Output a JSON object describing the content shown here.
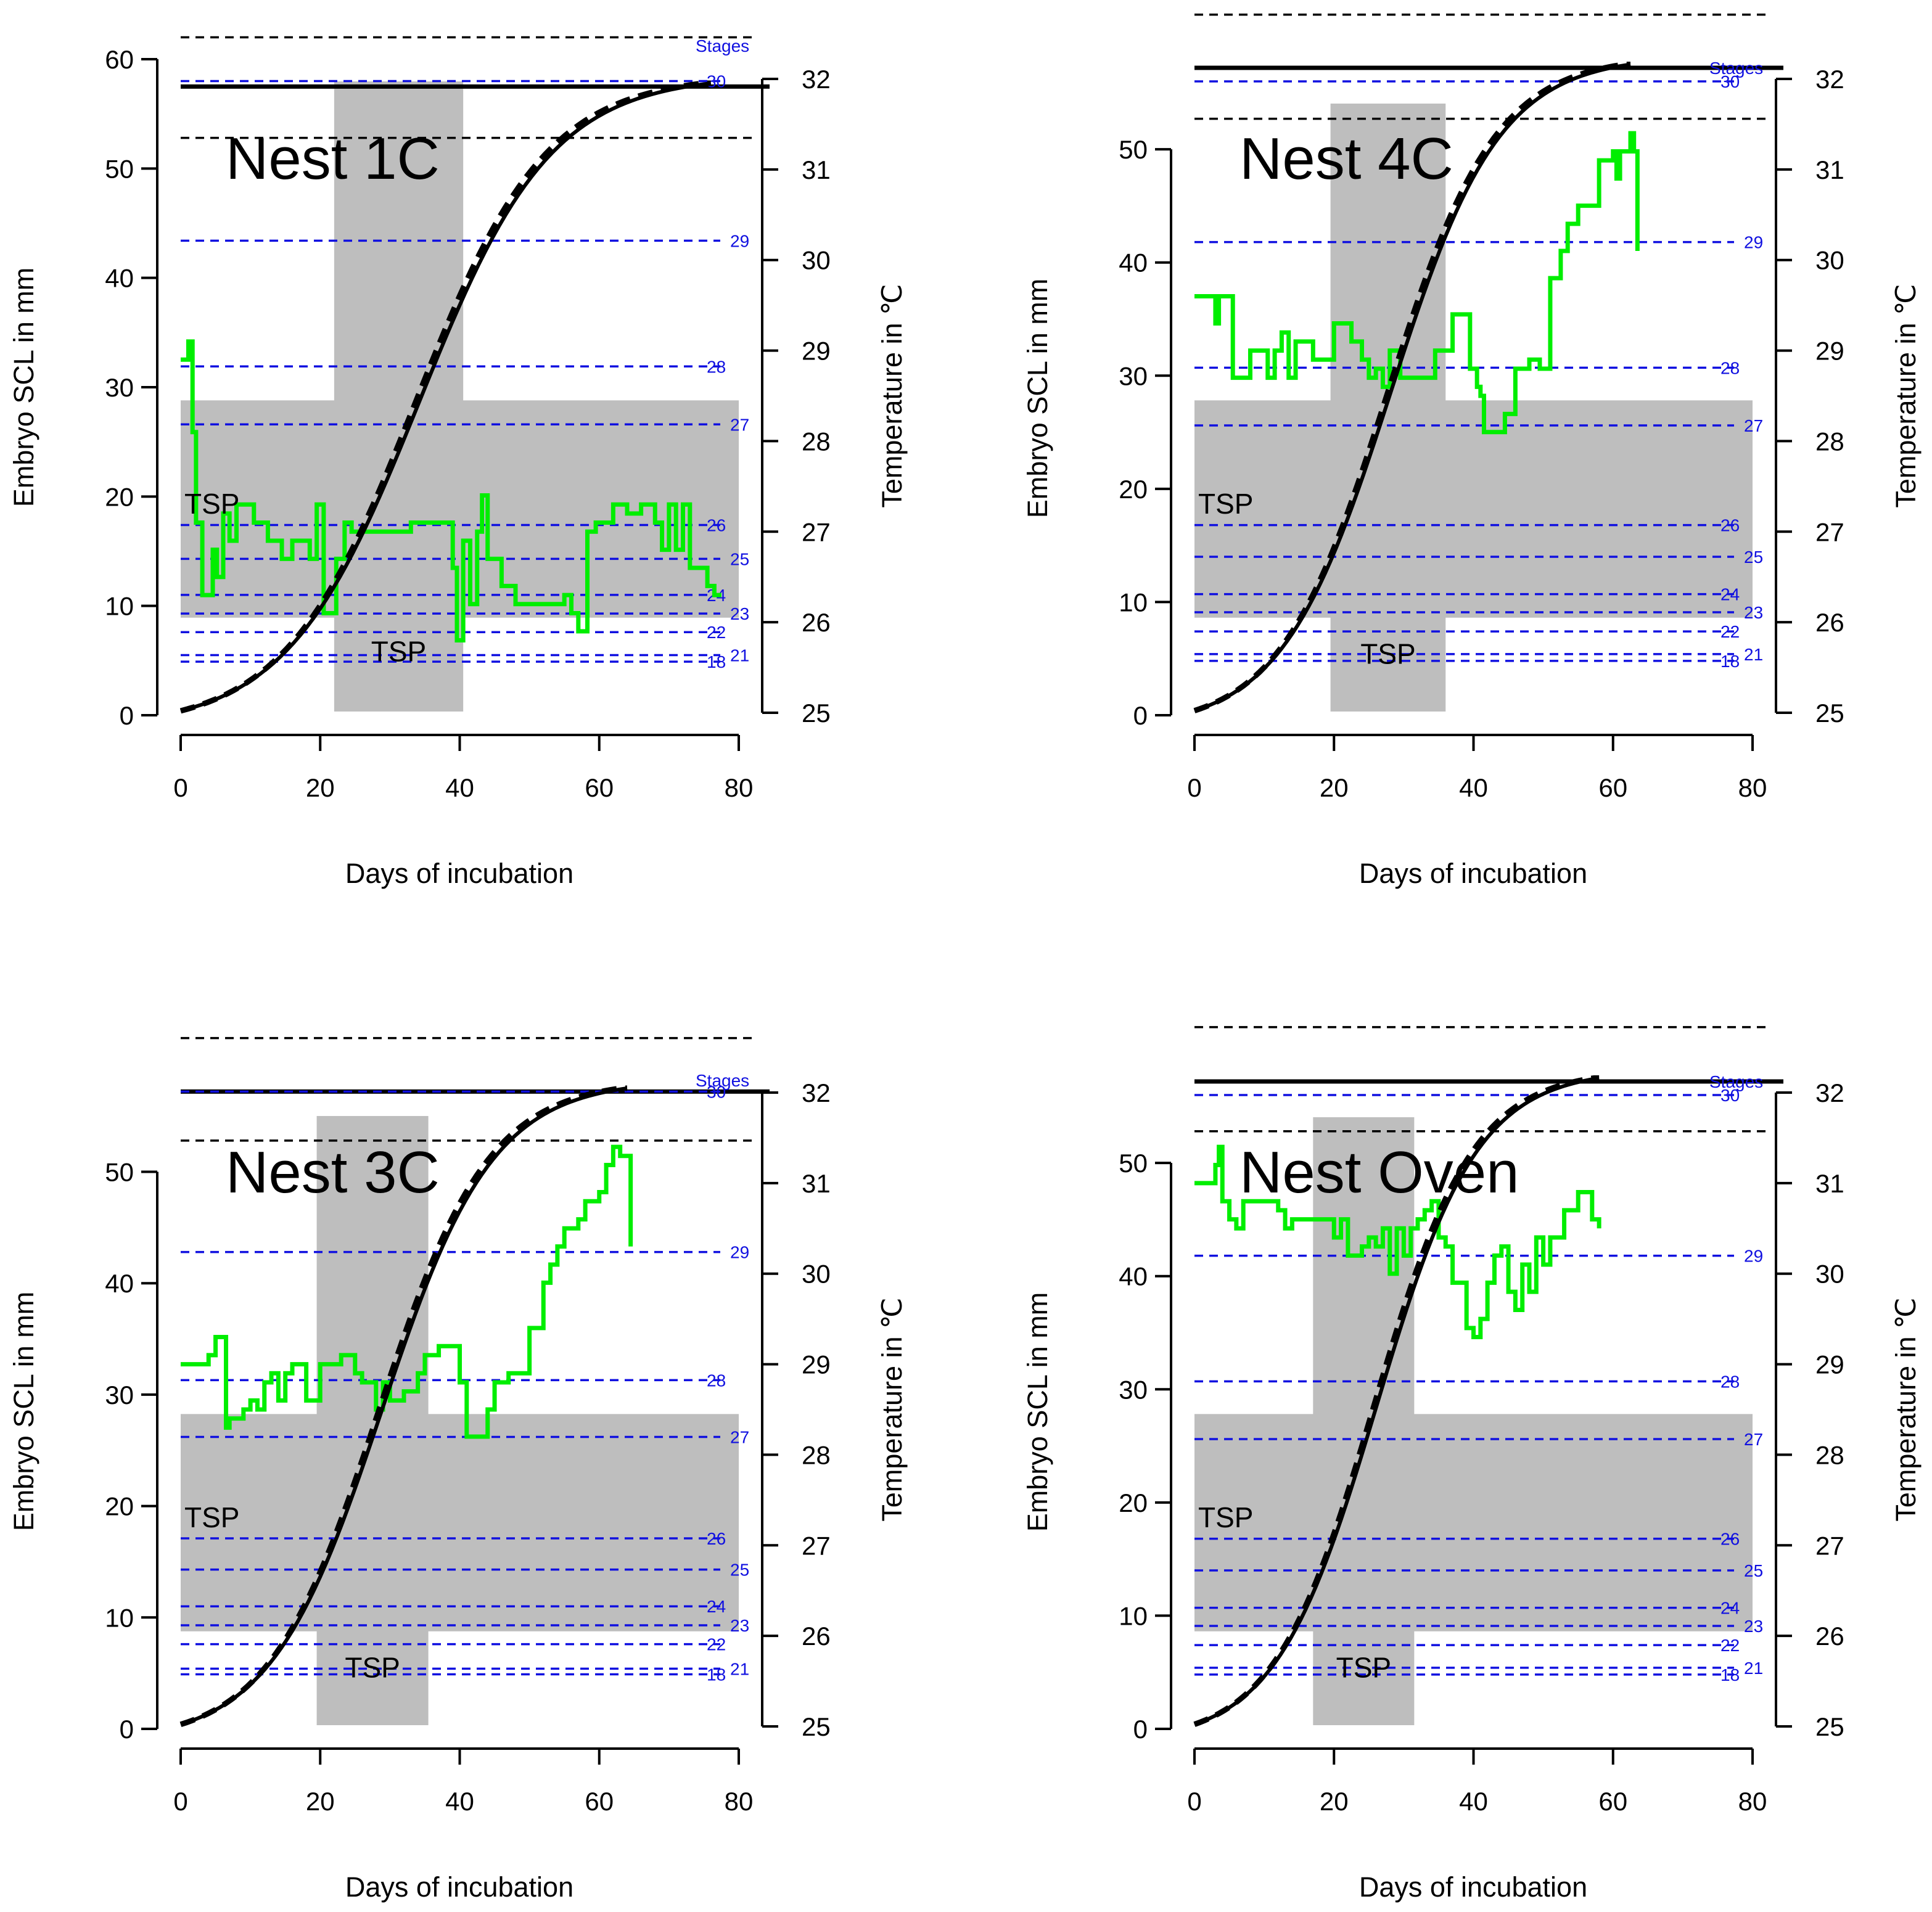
{
  "chart_data": [
    {
      "type": "line",
      "title": "Nest 1C",
      "xlabel": "Days of incubation",
      "ylabel": "Embryo SCL in mm",
      "ylabel2": "Temperature in ℃",
      "xlim": [
        0,
        80
      ],
      "xticks": [
        0,
        20,
        40,
        60,
        80
      ],
      "ylim": [
        0,
        60
      ],
      "yticks": [
        0,
        10,
        20,
        30,
        40,
        50,
        60
      ],
      "y2lim": [
        25,
        32
      ],
      "y2ticks": [
        25,
        26,
        27,
        28,
        29,
        30,
        31,
        32
      ],
      "stages_label": "Stages",
      "stages": [
        {
          "label": "18",
          "y": 4.9
        },
        {
          "label": "21",
          "y": 5.5
        },
        {
          "label": "22",
          "y": 7.6
        },
        {
          "label": "23",
          "y": 9.3
        },
        {
          "label": "24",
          "y": 11.0
        },
        {
          "label": "25",
          "y": 14.3
        },
        {
          "label": "26",
          "y": 17.4
        },
        {
          "label": "27",
          "y": 26.6
        },
        {
          "label": "28",
          "y": 31.9
        },
        {
          "label": "29",
          "y": 43.4
        },
        {
          "label": "30",
          "y": 58.0
        }
      ],
      "tsp_label": "TSP",
      "tsp_days": [
        22,
        40.5
      ],
      "tsp_temps": [
        26.05,
        28.45
      ],
      "hatch_line": 57.5,
      "hatch_ci": [
        52.8,
        62.0
      ],
      "growth_end_day": 76,
      "temperature": {
        "x": [
          0,
          1.1,
          1.7,
          2.2,
          3.1,
          4.6,
          5.2,
          6.1,
          7.0,
          8.0,
          9.0,
          10.5,
          12.5,
          14.5,
          16.0,
          18.5,
          19.5,
          20.5,
          22.3,
          23.5,
          24.5,
          27,
          30,
          33,
          34,
          36,
          38,
          39,
          39.6,
          40.5,
          41.5,
          42.5,
          43.2,
          44,
          46,
          48,
          50,
          53,
          55,
          56,
          57,
          58.3,
          59.5,
          62,
          64,
          66,
          68,
          69,
          70,
          71,
          72,
          73,
          74,
          75.5,
          76.5,
          77.5
        ],
        "y": [
          28.9,
          29.1,
          28.1,
          27.1,
          26.3,
          26.8,
          26.5,
          27.2,
          26.9,
          27.3,
          27.3,
          27.1,
          26.9,
          26.7,
          26.9,
          26.7,
          27.3,
          26.1,
          26.7,
          27.1,
          27.0,
          27.0,
          27.0,
          27.1,
          27.1,
          27.1,
          27.1,
          26.6,
          25.8,
          26.9,
          26.2,
          27.0,
          27.4,
          26.7,
          26.4,
          26.2,
          26.2,
          26.2,
          26.3,
          26.1,
          25.9,
          27.0,
          27.1,
          27.3,
          27.2,
          27.3,
          27.1,
          26.8,
          27.3,
          26.8,
          27.3,
          26.6,
          26.6,
          26.4,
          26.3,
          26.3
        ]
      }
    },
    {
      "type": "line",
      "title": "Nest 4C",
      "xlabel": "Days of incubation",
      "ylabel": "Embryo SCL in mm",
      "ylabel2": "Temperature in ℃",
      "xlim": [
        0,
        80
      ],
      "xticks": [
        0,
        20,
        40,
        60,
        80
      ],
      "ylim": [
        0,
        56
      ],
      "yticks": [
        0,
        10,
        20,
        30,
        40,
        50
      ],
      "y2lim": [
        25,
        32
      ],
      "y2ticks": [
        25,
        26,
        27,
        28,
        29,
        30,
        31,
        32
      ],
      "stages_label": "Stages",
      "stages": [
        {
          "label": "18",
          "y": 4.8
        },
        {
          "label": "21",
          "y": 5.4
        },
        {
          "label": "22",
          "y": 7.4
        },
        {
          "label": "23",
          "y": 9.1
        },
        {
          "label": "24",
          "y": 10.7
        },
        {
          "label": "25",
          "y": 14.0
        },
        {
          "label": "26",
          "y": 16.8
        },
        {
          "label": "27",
          "y": 25.6
        },
        {
          "label": "28",
          "y": 30.7
        },
        {
          "label": "29",
          "y": 41.8
        },
        {
          "label": "30",
          "y": 56.0
        }
      ],
      "tsp_label": "TSP",
      "tsp_days": [
        19.5,
        36
      ],
      "tsp_temps": [
        26.05,
        28.45
      ],
      "hatch_line": 57.2,
      "hatch_ci": [
        52.7,
        61.9
      ],
      "growth_end_day": 62.5,
      "temperature": {
        "x": [
          0,
          2,
          3,
          3.5,
          5.5,
          8,
          9,
          10.5,
          11.5,
          12.5,
          13.5,
          14.5,
          15.5,
          17,
          18,
          20,
          21,
          22.5,
          24,
          25,
          26,
          27,
          28,
          29.5,
          33,
          34.5,
          36,
          37,
          38.5,
          39.5,
          40.5,
          41,
          41.5,
          43,
          44.5,
          46,
          48,
          49.5,
          51,
          52.5,
          53.5,
          55,
          57,
          58,
          59,
          60,
          60.5,
          61,
          62,
          62.5,
          63,
          63.5
        ],
        "y": [
          29.6,
          29.6,
          29.3,
          29.6,
          28.7,
          29.0,
          29.0,
          28.7,
          29.0,
          29.2,
          28.7,
          29.1,
          29.1,
          28.9,
          28.9,
          29.3,
          29.3,
          29.1,
          28.9,
          28.7,
          28.8,
          28.6,
          29.0,
          28.7,
          28.7,
          29.0,
          29.0,
          29.4,
          29.4,
          28.8,
          28.6,
          28.5,
          28.1,
          28.1,
          28.3,
          28.8,
          28.9,
          28.8,
          29.8,
          30.1,
          30.4,
          30.6,
          30.6,
          31.1,
          31.1,
          31.2,
          30.9,
          31.2,
          31.2,
          31.4,
          31.2,
          30.1
        ]
      }
    },
    {
      "type": "line",
      "title": "Nest 3C",
      "xlabel": "Days of incubation",
      "ylabel": "Embryo SCL in mm",
      "ylabel2": "Temperature in ℃",
      "xlim": [
        0,
        80
      ],
      "xticks": [
        0,
        20,
        40,
        60,
        80
      ],
      "ylim": [
        0,
        57
      ],
      "yticks": [
        0,
        10,
        20,
        30,
        40,
        50
      ],
      "y2lim": [
        25,
        32
      ],
      "y2ticks": [
        25,
        26,
        27,
        28,
        29,
        30,
        31,
        32
      ],
      "stages_label": "Stages",
      "stages": [
        {
          "label": "18",
          "y": 4.9
        },
        {
          "label": "21",
          "y": 5.4
        },
        {
          "label": "22",
          "y": 7.6
        },
        {
          "label": "23",
          "y": 9.3
        },
        {
          "label": "24",
          "y": 11.0
        },
        {
          "label": "25",
          "y": 14.3
        },
        {
          "label": "26",
          "y": 17.1
        },
        {
          "label": "27",
          "y": 26.2
        },
        {
          "label": "28",
          "y": 31.3
        },
        {
          "label": "29",
          "y": 42.8
        },
        {
          "label": "30",
          "y": 57.2
        }
      ],
      "tsp_label": "TSP",
      "tsp_days": [
        19.5,
        35.5
      ],
      "tsp_temps": [
        26.05,
        28.45
      ],
      "hatch_line": 57.2,
      "hatch_ci": [
        52.8,
        62.0
      ],
      "growth_end_day": 64,
      "temperature": {
        "x": [
          0,
          3,
          4,
          5,
          6,
          6.5,
          7,
          8,
          9,
          10,
          11,
          12,
          13,
          14,
          15,
          16,
          17,
          18,
          19,
          20,
          21,
          23,
          24,
          25,
          26,
          27,
          28,
          29,
          30,
          31,
          32,
          34,
          35,
          36,
          37,
          38,
          39,
          40,
          41,
          42,
          43,
          44,
          45,
          46,
          47,
          48,
          50,
          51,
          52,
          53,
          54,
          55,
          56,
          57,
          58,
          59,
          60,
          61,
          62,
          63,
          64,
          64.5
        ],
        "y": [
          29.0,
          29.0,
          29.1,
          29.3,
          29.3,
          28.3,
          28.4,
          28.4,
          28.5,
          28.6,
          28.5,
          28.8,
          28.9,
          28.6,
          28.9,
          29.0,
          29.0,
          28.6,
          28.6,
          29.0,
          29.0,
          29.1,
          29.1,
          28.9,
          28.8,
          28.8,
          28.5,
          28.8,
          28.6,
          28.6,
          28.7,
          28.9,
          29.1,
          29.1,
          29.2,
          29.2,
          29.2,
          28.8,
          28.2,
          28.2,
          28.2,
          28.5,
          28.8,
          28.8,
          28.9,
          28.9,
          29.4,
          29.4,
          29.9,
          30.1,
          30.3,
          30.5,
          30.5,
          30.6,
          30.8,
          30.8,
          30.9,
          31.2,
          31.4,
          31.3,
          31.3,
          30.3
        ]
      }
    },
    {
      "type": "line",
      "title": "Nest Oven",
      "xlabel": "Days of incubation",
      "ylabel": "Embryo SCL in mm",
      "ylabel2": "Temperature in ℃",
      "xlim": [
        0,
        80
      ],
      "xticks": [
        0,
        20,
        40,
        60,
        80
      ],
      "ylim": [
        0,
        56
      ],
      "yticks": [
        0,
        10,
        20,
        30,
        40,
        50
      ],
      "y2lim": [
        25,
        32
      ],
      "y2ticks": [
        25,
        26,
        27,
        28,
        29,
        30,
        31,
        32
      ],
      "stages_label": "Stages",
      "stages": [
        {
          "label": "18",
          "y": 4.8
        },
        {
          "label": "21",
          "y": 5.4
        },
        {
          "label": "22",
          "y": 7.4
        },
        {
          "label": "23",
          "y": 9.1
        },
        {
          "label": "24",
          "y": 10.7
        },
        {
          "label": "25",
          "y": 14.0
        },
        {
          "label": "26",
          "y": 16.8
        },
        {
          "label": "27",
          "y": 25.6
        },
        {
          "label": "28",
          "y": 30.7
        },
        {
          "label": "29",
          "y": 41.8
        },
        {
          "label": "30",
          "y": 56.0
        }
      ],
      "tsp_label": "TSP",
      "tsp_days": [
        17,
        31.5
      ],
      "tsp_temps": [
        26.05,
        28.45
      ],
      "hatch_line": 57.2,
      "hatch_ci": [
        52.8,
        62.0
      ],
      "growth_end_day": 58,
      "temperature": {
        "x": [
          0,
          2,
          3,
          3.5,
          4,
          5,
          6,
          7,
          8,
          10,
          12,
          13,
          14,
          15,
          17,
          19,
          20,
          21,
          22,
          23,
          24,
          25,
          26,
          27,
          28,
          29,
          30,
          31,
          32,
          33,
          34,
          35,
          36,
          37,
          38,
          39,
          40,
          41,
          42,
          43,
          44,
          45,
          46,
          47,
          48,
          49,
          50,
          51,
          52,
          53,
          54,
          55,
          56,
          57,
          58
        ],
        "y": [
          31.0,
          31.0,
          31.2,
          31.4,
          30.8,
          30.6,
          30.5,
          30.8,
          30.8,
          30.8,
          30.7,
          30.5,
          30.6,
          30.6,
          30.6,
          30.6,
          30.4,
          30.6,
          30.2,
          30.2,
          30.3,
          30.4,
          30.3,
          30.5,
          30.0,
          30.5,
          30.2,
          30.5,
          30.6,
          30.7,
          30.8,
          30.4,
          30.3,
          29.9,
          29.9,
          29.4,
          29.3,
          29.5,
          29.9,
          30.2,
          30.3,
          29.8,
          29.6,
          30.1,
          29.8,
          30.4,
          30.1,
          30.4,
          30.4,
          30.7,
          30.7,
          30.9,
          30.9,
          30.6,
          30.5
        ]
      }
    }
  ]
}
